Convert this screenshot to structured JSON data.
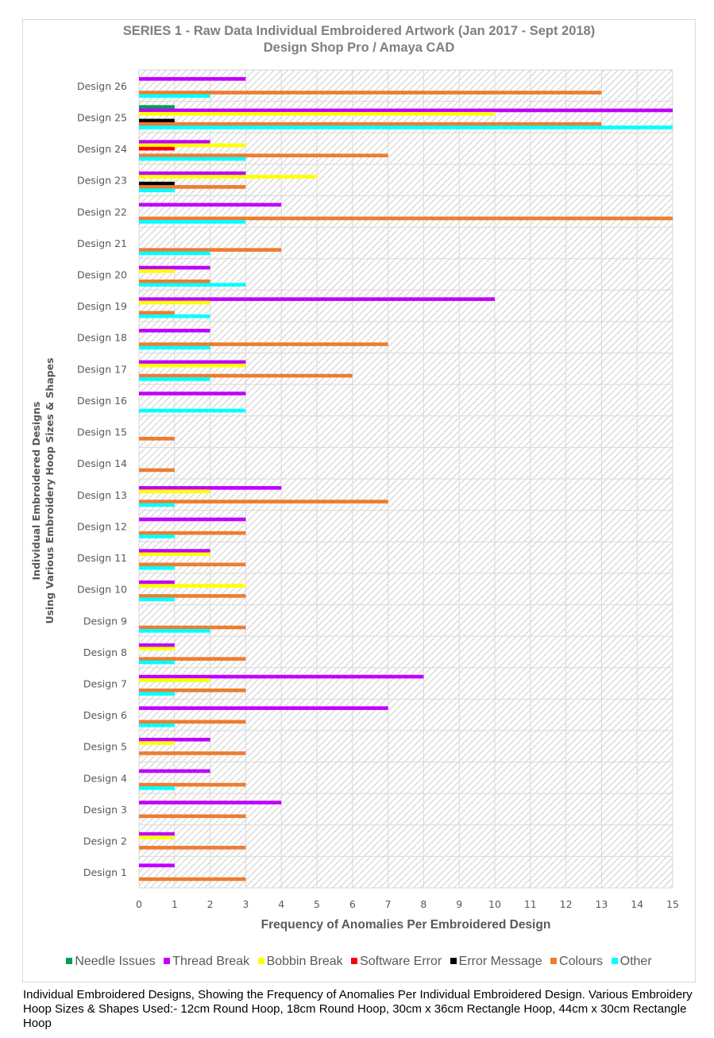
{
  "chart_data": {
    "type": "bar",
    "orientation": "horizontal",
    "title": "SERIES 1 - Raw Data Individual Embroidered Artwork (Jan 2017 - Sept 2018)",
    "subtitle": "Design Shop Pro / Amaya CAD",
    "xlabel": "Frequency of Anomalies Per Embroidered Design",
    "ylabel_lines": [
      "Individual Embroidered Designs",
      "Using Various Embroidery Hoop Sizes & Shapes"
    ],
    "xlim": [
      0,
      15
    ],
    "xticks": [
      "0",
      "1",
      "2",
      "3",
      "4",
      "5",
      "6",
      "7",
      "8",
      "9",
      "10",
      "11",
      "12",
      "13",
      "14",
      "15"
    ],
    "grid": true,
    "legend_position": "bottom",
    "categories": [
      "Design 1",
      "Design 2",
      "Design 3",
      "Design 4",
      "Design 5",
      "Design 6",
      "Design 7",
      "Design 8",
      "Design 9",
      "Design 10",
      "Design 11",
      "Design 12",
      "Design 13",
      "Design 14",
      "Design 15",
      "Design 16",
      "Design 17",
      "Design 18",
      "Design 19",
      "Design 20",
      "Design 21",
      "Design 22",
      "Design 23",
      "Design 24",
      "Design 25",
      "Design 26"
    ],
    "series": [
      {
        "name": "Needle Issues",
        "color": "#00a050",
        "values": [
          0,
          0,
          0,
          0,
          0,
          0,
          0,
          0,
          0,
          0,
          0,
          0,
          0,
          0,
          0,
          0,
          0,
          0,
          0,
          0,
          0,
          0,
          0,
          0,
          1,
          0
        ]
      },
      {
        "name": "Thread Break",
        "color": "#c000ff",
        "values": [
          1,
          1,
          4,
          2,
          2,
          7,
          8,
          1,
          0,
          1,
          2,
          3,
          4,
          0,
          0,
          3,
          3,
          2,
          10,
          2,
          0,
          4,
          3,
          2,
          15,
          3
        ]
      },
      {
        "name": "Bobbin Break",
        "color": "#ffff00",
        "values": [
          0,
          1,
          0,
          0,
          1,
          0,
          2,
          1,
          0,
          3,
          2,
          0,
          2,
          0,
          0,
          0,
          3,
          0,
          2,
          1,
          0,
          0,
          5,
          3,
          10,
          0
        ]
      },
      {
        "name": "Software Error",
        "color": "#ff0000",
        "values": [
          0,
          0,
          0,
          0,
          0,
          0,
          0,
          0,
          0,
          0,
          0,
          0,
          0,
          0,
          0,
          0,
          0,
          0,
          0,
          0,
          0,
          0,
          0,
          1,
          0,
          0
        ]
      },
      {
        "name": "Error Message",
        "color": "#000000",
        "values": [
          0,
          0,
          0,
          0,
          0,
          0,
          0,
          0,
          0,
          0,
          0,
          0,
          0,
          0,
          0,
          0,
          0,
          0,
          0,
          0,
          0,
          0,
          1,
          0,
          1,
          0
        ]
      },
      {
        "name": "Colours",
        "color": "#ed7d31",
        "values": [
          3,
          3,
          3,
          3,
          3,
          3,
          3,
          3,
          3,
          3,
          3,
          3,
          7,
          1,
          1,
          0,
          6,
          7,
          1,
          2,
          4,
          15,
          3,
          7,
          13,
          13
        ]
      },
      {
        "name": "Other",
        "color": "#00ffff",
        "values": [
          0,
          0,
          0,
          1,
          0,
          1,
          1,
          1,
          2,
          1,
          1,
          1,
          1,
          0,
          0,
          3,
          2,
          2,
          2,
          3,
          2,
          3,
          1,
          3,
          15,
          2
        ]
      }
    ]
  },
  "caption": "Individual Embroidered Designs, Showing the Frequency of Anomalies Per Individual Embroidered Design. Various Embroidery Hoop Sizes & Shapes Used:- 12cm Round Hoop, 18cm Round Hoop, 30cm x 36cm Rectangle Hoop, 44cm x 30cm Rectangle Hoop"
}
